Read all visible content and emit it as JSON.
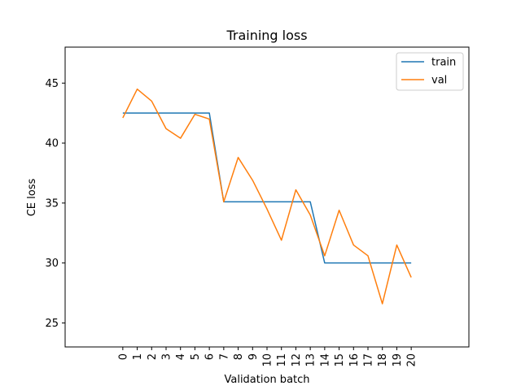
{
  "chart_data": {
    "type": "line",
    "title": "Training loss",
    "xlabel": "Validation batch",
    "ylabel": "CE loss",
    "x": [
      0,
      1,
      2,
      3,
      4,
      5,
      6,
      7,
      8,
      9,
      10,
      11,
      12,
      13,
      14,
      15,
      16,
      17,
      18,
      19,
      20
    ],
    "xlim": [
      -4,
      24
    ],
    "ylim": [
      23,
      48
    ],
    "yticks": [
      25,
      30,
      35,
      40,
      45
    ],
    "grid": false,
    "legend_position": "top-right",
    "series": [
      {
        "name": "train",
        "color": "#1f77b4",
        "values": [
          42.5,
          42.5,
          42.5,
          42.5,
          42.5,
          42.5,
          42.5,
          35.1,
          35.1,
          35.1,
          35.1,
          35.1,
          35.1,
          35.1,
          30.0,
          30.0,
          30.0,
          30.0,
          30.0,
          30.0,
          30.0
        ]
      },
      {
        "name": "val",
        "color": "#ff7f0e",
        "values": [
          42.1,
          44.5,
          43.5,
          41.2,
          40.4,
          42.4,
          42.0,
          35.1,
          38.8,
          36.9,
          34.5,
          31.9,
          36.1,
          34.0,
          30.6,
          34.4,
          31.5,
          30.6,
          26.6,
          31.5,
          28.8
        ]
      }
    ]
  }
}
